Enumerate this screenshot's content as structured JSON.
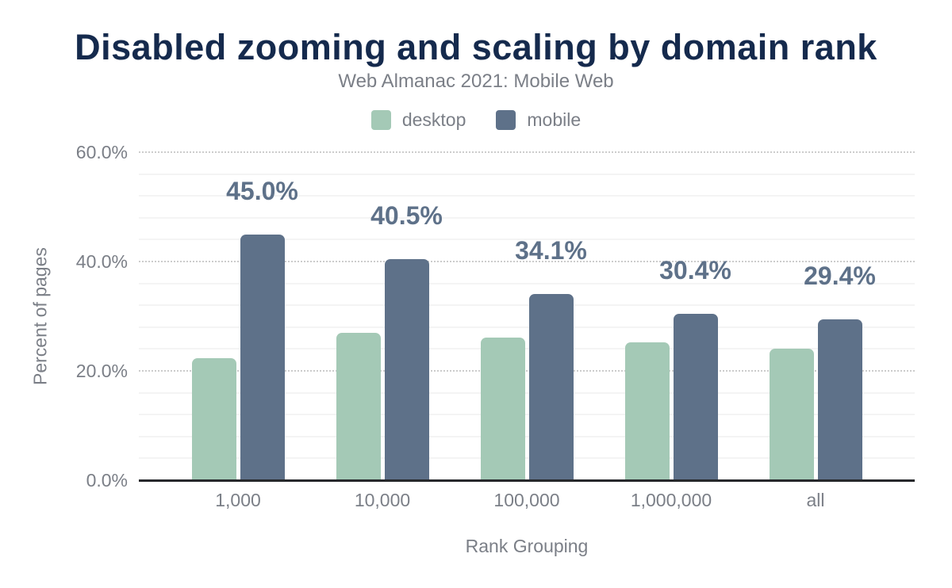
{
  "chart_data": {
    "type": "bar",
    "title": "Disabled zooming and scaling by domain rank",
    "subtitle": "Web Almanac 2021: Mobile Web",
    "xlabel": "Rank Grouping",
    "ylabel": "Percent of pages",
    "categories": [
      "1,000",
      "10,000",
      "100,000",
      "1,000,000",
      "all"
    ],
    "series": [
      {
        "name": "desktop",
        "color": "#a4c9b6",
        "values": [
          22.3,
          26.9,
          26.1,
          25.2,
          24.0
        ],
        "data_labels": []
      },
      {
        "name": "mobile",
        "color": "#5e7189",
        "values": [
          45.0,
          40.5,
          34.1,
          30.4,
          29.4
        ],
        "data_labels": [
          "45.0%",
          "40.5%",
          "34.1%",
          "30.4%",
          "29.4%"
        ]
      }
    ],
    "ylim": [
      0,
      60
    ],
    "yticks": [
      {
        "v": 0,
        "label": "0.0%"
      },
      {
        "v": 20,
        "label": "20.0%"
      },
      {
        "v": 40,
        "label": "40.0%"
      },
      {
        "v": 60,
        "label": "60.0%"
      }
    ],
    "minor_grid_step": 4,
    "grid": true,
    "legend_position": "top",
    "colors": {
      "title": "#152a4d",
      "axis_text": "#7b7f87",
      "data_label": "#5e7189",
      "axis_line": "#26282b",
      "major_grid": "#cccccc",
      "minor_grid": "#f4f4f4",
      "background": "#ffffff"
    }
  }
}
